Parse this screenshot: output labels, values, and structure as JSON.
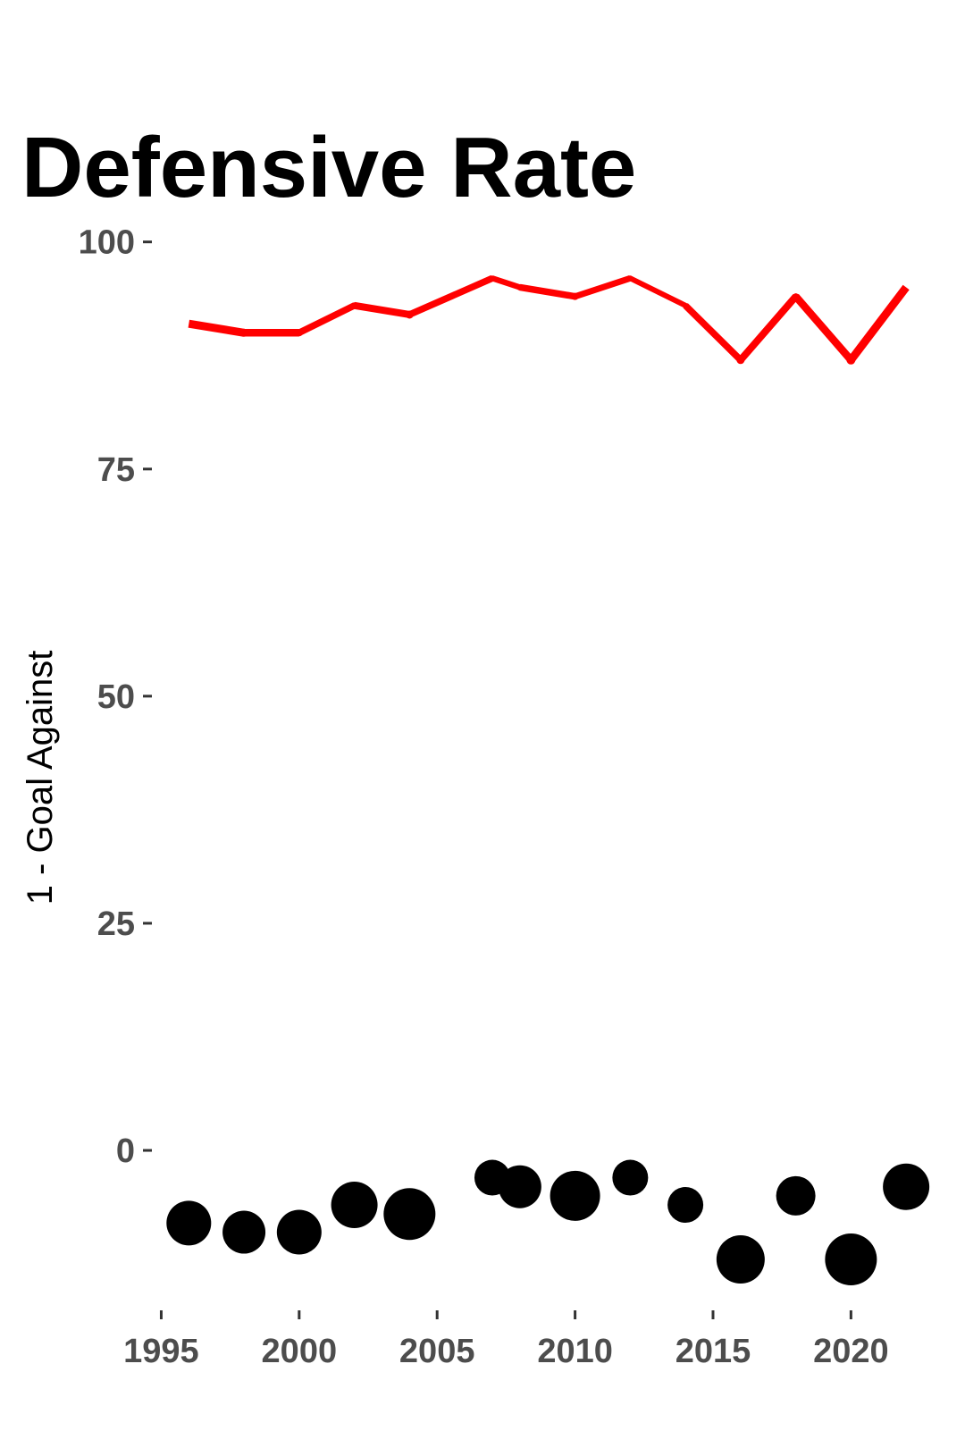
{
  "chart_data": {
    "type": "line",
    "title": "Defensive Rate",
    "xlabel": "",
    "ylabel": "1 - Goal Against",
    "xlim": [
      1994.5,
      2023
    ],
    "ylim": [
      -18,
      104
    ],
    "x_ticks": [
      1995,
      2000,
      2005,
      2010,
      2015,
      2020
    ],
    "y_ticks": [
      0,
      25,
      50,
      75,
      100
    ],
    "grid": false,
    "line_color": "#ff0000",
    "point_color": "#000000",
    "series": [
      {
        "type": "line",
        "x": [
          1996,
          1998,
          2000,
          2002,
          2004,
          2007,
          2008,
          2010,
          2012,
          2014,
          2016,
          2018,
          2020,
          2022
        ],
        "y": [
          91,
          90,
          90,
          93,
          92,
          96,
          95,
          94,
          96,
          93,
          87,
          94,
          87,
          95
        ],
        "width": [
          9,
          9,
          8,
          7,
          9,
          6,
          7,
          8,
          6,
          6,
          9,
          7,
          10,
          8
        ]
      },
      {
        "type": "scatter",
        "x": [
          1996,
          1998,
          2000,
          2002,
          2004,
          2007,
          2008,
          2010,
          2012,
          2014,
          2016,
          2018,
          2020,
          2022
        ],
        "y": [
          -8,
          -9,
          -9,
          -6,
          -7,
          -3,
          -4,
          -5,
          -3,
          -6,
          -12,
          -5,
          -12,
          -4
        ],
        "size": [
          25,
          24,
          25,
          26,
          29,
          20,
          24,
          28,
          20,
          20,
          27,
          22,
          29,
          26
        ]
      }
    ]
  }
}
